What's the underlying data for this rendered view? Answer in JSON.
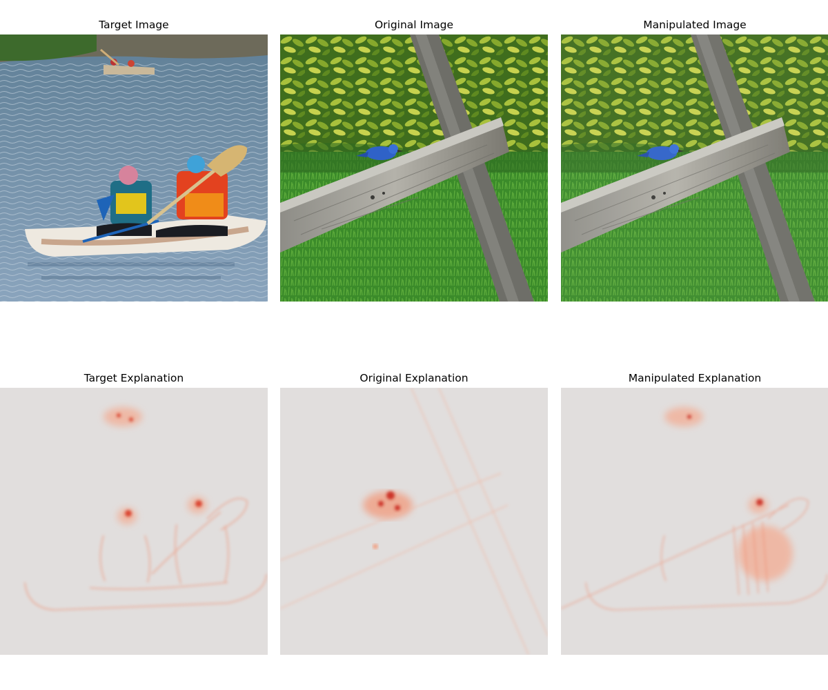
{
  "figure": {
    "panels": [
      {
        "title": "Target Image"
      },
      {
        "title": "Original Image"
      },
      {
        "title": "Manipulated Image"
      },
      {
        "title": "Target Explanation"
      },
      {
        "title": "Original Explanation"
      },
      {
        "title": "Manipulated Explanation"
      }
    ]
  },
  "colors": {
    "water": "#6f8fae",
    "foliage": "#6f9a2a",
    "grass": "#3f8a2c",
    "wood": "#9a9a96",
    "bird": "#2f62c8",
    "heatmap_bg": "#e1dedd",
    "heatmap_hot": "#d7301f"
  }
}
